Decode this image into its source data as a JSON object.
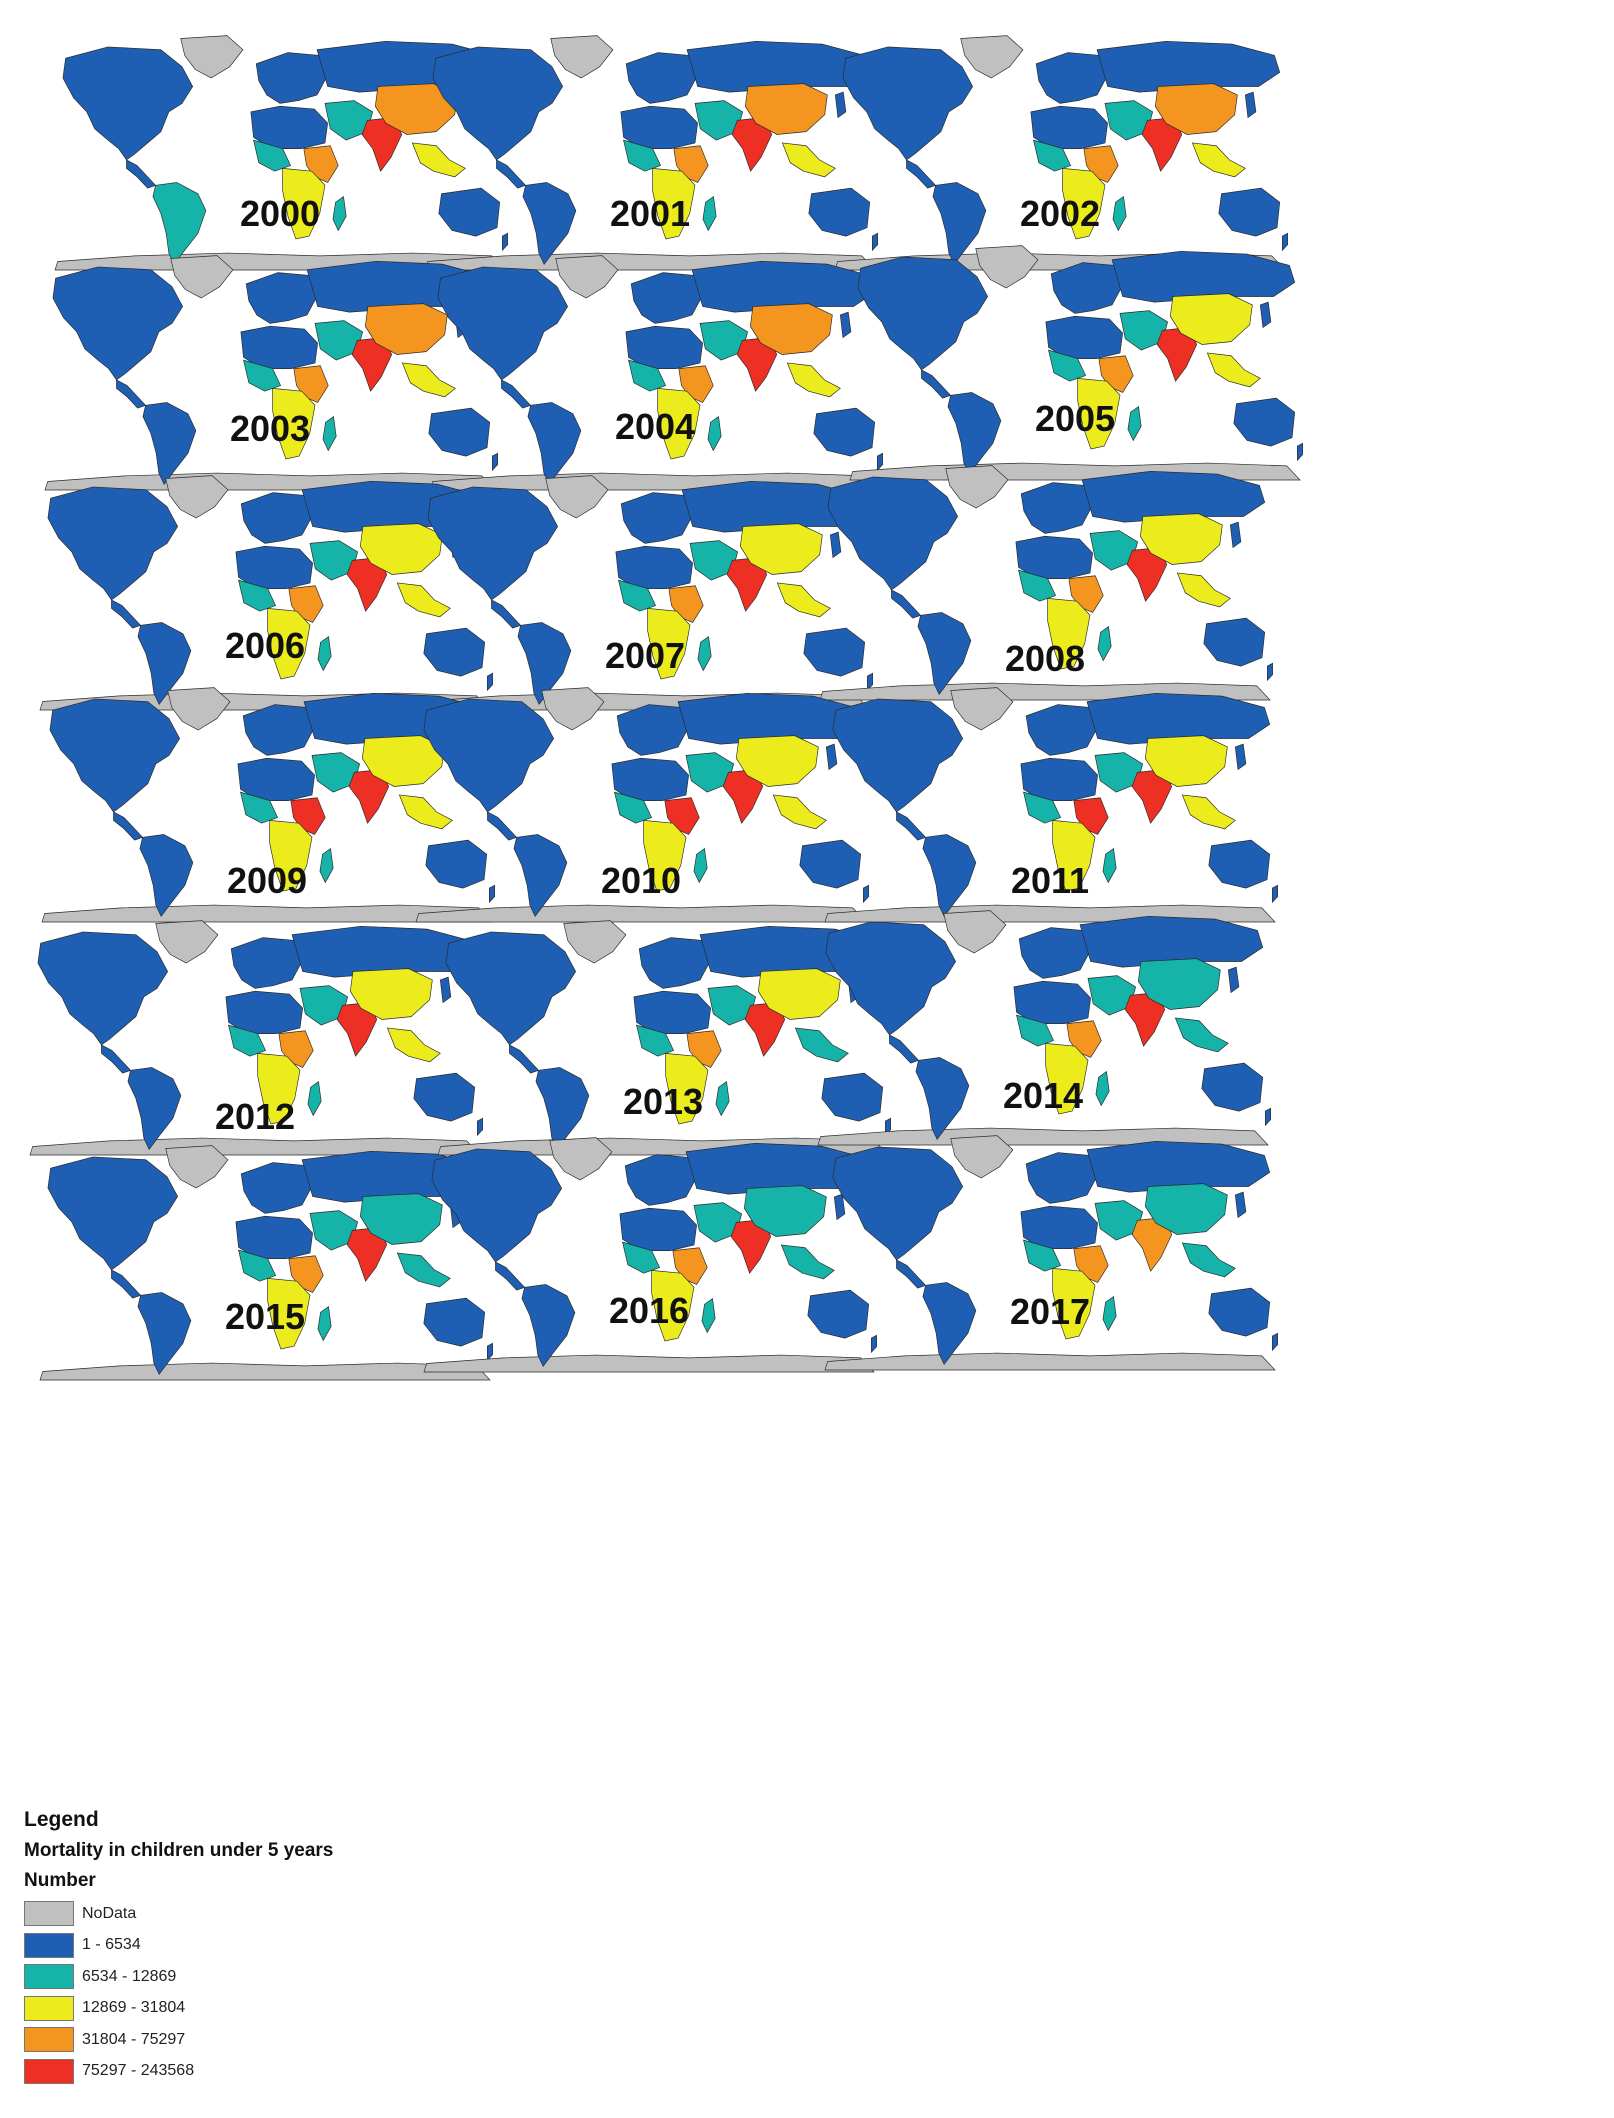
{
  "colors": {
    "nodata": "#c0c0c0",
    "c1": "#1f5fb3",
    "c2": "#15b3a8",
    "c3": "#ecec1c",
    "c4": "#f49520",
    "c5": "#ee2f24",
    "border": "#2a2a2a"
  },
  "maps": [
    {
      "year": "2000",
      "china": "c4",
      "india": "c5",
      "mideast": "c2",
      "brazil": "c2",
      "easia": "c3",
      "europe": "c1",
      "wafrica": "c2",
      "safrica": "c3",
      "eafrica": "c4"
    },
    {
      "year": "2001",
      "china": "c4",
      "india": "c5",
      "mideast": "c2",
      "brazil": "c1",
      "easia": "c3",
      "europe": "c1",
      "wafrica": "c2",
      "safrica": "c3",
      "eafrica": "c4"
    },
    {
      "year": "2002",
      "china": "c4",
      "india": "c5",
      "mideast": "c2",
      "brazil": "c1",
      "easia": "c3",
      "europe": "c1",
      "wafrica": "c2",
      "safrica": "c3",
      "eafrica": "c4"
    },
    {
      "year": "2003",
      "china": "c4",
      "india": "c5",
      "mideast": "c2",
      "brazil": "c1",
      "easia": "c3",
      "europe": "c1",
      "wafrica": "c2",
      "safrica": "c3",
      "eafrica": "c4"
    },
    {
      "year": "2004",
      "china": "c4",
      "india": "c5",
      "mideast": "c2",
      "brazil": "c1",
      "easia": "c3",
      "europe": "c1",
      "wafrica": "c2",
      "safrica": "c3",
      "eafrica": "c4"
    },
    {
      "year": "2005",
      "china": "c3",
      "india": "c5",
      "mideast": "c2",
      "brazil": "c1",
      "easia": "c3",
      "europe": "c1",
      "wafrica": "c2",
      "safrica": "c3",
      "eafrica": "c4"
    },
    {
      "year": "2006",
      "china": "c3",
      "india": "c5",
      "mideast": "c2",
      "brazil": "c1",
      "easia": "c3",
      "europe": "c1",
      "wafrica": "c2",
      "safrica": "c3",
      "eafrica": "c4"
    },
    {
      "year": "2007",
      "china": "c3",
      "india": "c5",
      "mideast": "c2",
      "brazil": "c1",
      "easia": "c3",
      "europe": "c1",
      "wafrica": "c2",
      "safrica": "c3",
      "eafrica": "c4"
    },
    {
      "year": "2008",
      "china": "c3",
      "india": "c5",
      "mideast": "c2",
      "brazil": "c1",
      "easia": "c3",
      "europe": "c1",
      "wafrica": "c2",
      "safrica": "c3",
      "eafrica": "c4"
    },
    {
      "year": "2009",
      "china": "c3",
      "india": "c5",
      "mideast": "c2",
      "brazil": "c1",
      "easia": "c3",
      "europe": "c1",
      "wafrica": "c2",
      "safrica": "c3",
      "eafrica": "c5"
    },
    {
      "year": "2010",
      "china": "c3",
      "india": "c5",
      "mideast": "c2",
      "brazil": "c1",
      "easia": "c3",
      "europe": "c1",
      "wafrica": "c2",
      "safrica": "c3",
      "eafrica": "c5"
    },
    {
      "year": "2011",
      "china": "c3",
      "india": "c5",
      "mideast": "c2",
      "brazil": "c1",
      "easia": "c3",
      "europe": "c1",
      "wafrica": "c2",
      "safrica": "c3",
      "eafrica": "c5"
    },
    {
      "year": "2012",
      "china": "c3",
      "india": "c5",
      "mideast": "c2",
      "brazil": "c1",
      "easia": "c3",
      "europe": "c1",
      "wafrica": "c2",
      "safrica": "c3",
      "eafrica": "c4"
    },
    {
      "year": "2013",
      "china": "c3",
      "india": "c5",
      "mideast": "c2",
      "brazil": "c1",
      "easia": "c2",
      "europe": "c1",
      "wafrica": "c2",
      "safrica": "c3",
      "eafrica": "c4"
    },
    {
      "year": "2014",
      "china": "c2",
      "india": "c5",
      "mideast": "c2",
      "brazil": "c1",
      "easia": "c2",
      "europe": "c1",
      "wafrica": "c2",
      "safrica": "c3",
      "eafrica": "c4"
    },
    {
      "year": "2015",
      "china": "c2",
      "india": "c5",
      "mideast": "c2",
      "brazil": "c1",
      "easia": "c2",
      "europe": "c1",
      "wafrica": "c2",
      "safrica": "c3",
      "eafrica": "c4"
    },
    {
      "year": "2016",
      "china": "c2",
      "india": "c5",
      "mideast": "c2",
      "brazil": "c1",
      "easia": "c2",
      "europe": "c1",
      "wafrica": "c2",
      "safrica": "c3",
      "eafrica": "c4"
    },
    {
      "year": "2017",
      "china": "c2",
      "india": "c4",
      "mideast": "c2",
      "brazil": "c1",
      "easia": "c2",
      "europe": "c1",
      "wafrica": "c2",
      "safrica": "c3",
      "eafrica": "c4"
    }
  ],
  "legend": {
    "title": "Legend",
    "subtitle": "Mortality in children under 5 years",
    "field": "Number",
    "items": [
      {
        "label": "NoData",
        "color": "#c0c0c0"
      },
      {
        "label": "1 - 6534",
        "color": "#1f5fb3"
      },
      {
        "label": "6534 - 12869",
        "color": "#15b3a8"
      },
      {
        "label": "12869 - 31804",
        "color": "#ecec1c"
      },
      {
        "label": "31804 - 75297",
        "color": "#f49520"
      },
      {
        "label": "75297 - 243568",
        "color": "#ee2f24"
      }
    ]
  }
}
